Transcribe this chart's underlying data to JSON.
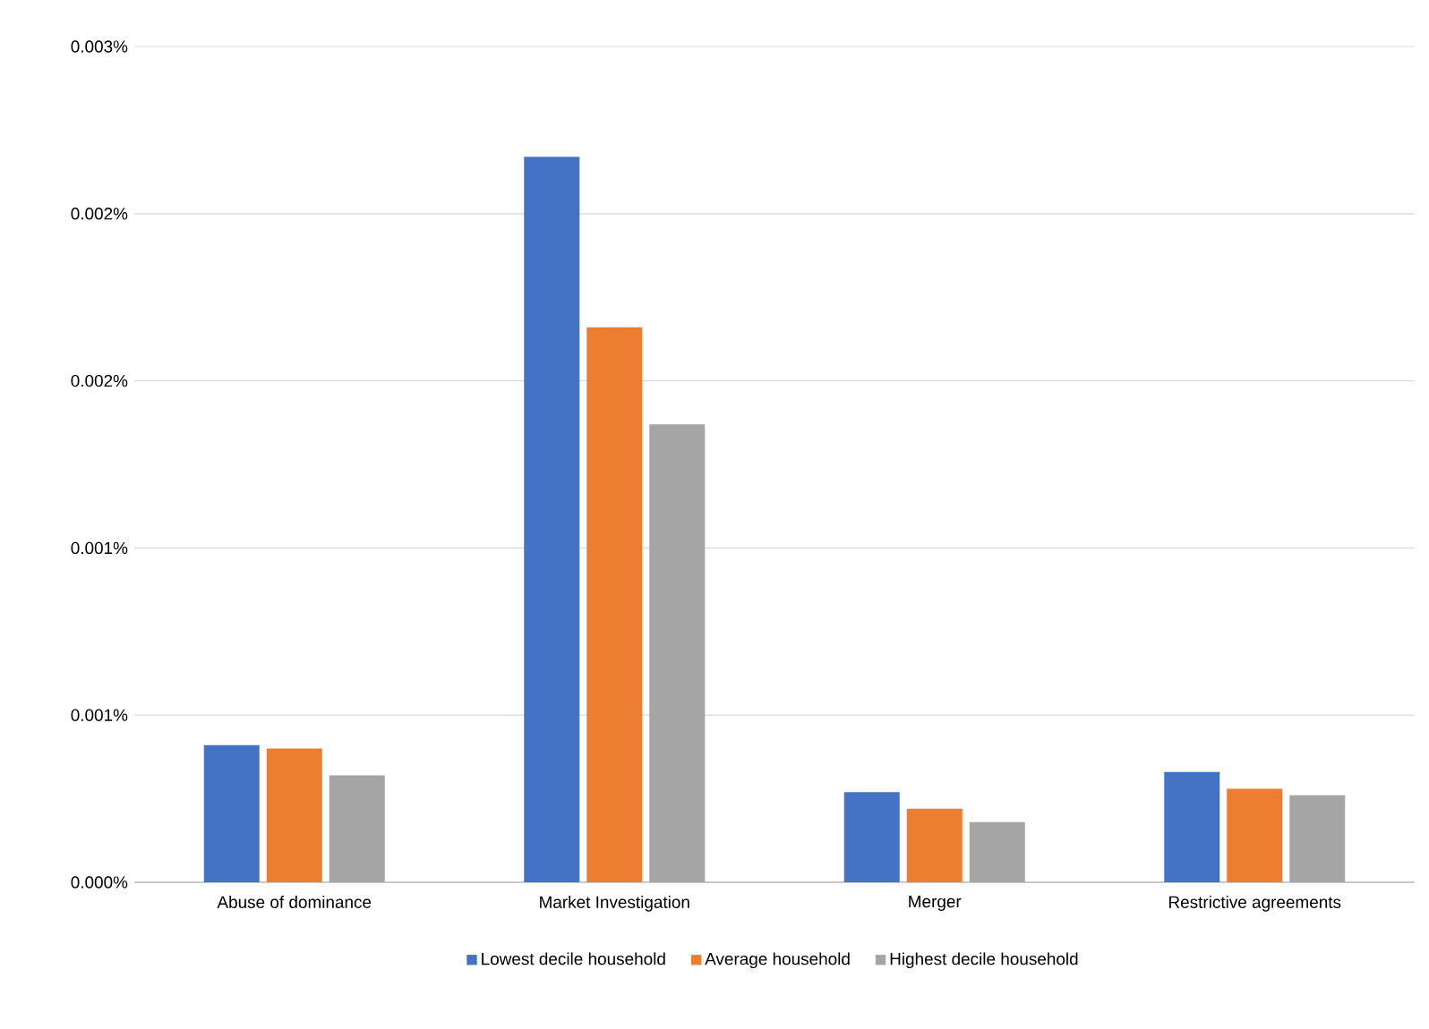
{
  "chart_data": {
    "type": "bar",
    "categories": [
      "Abuse of dominance",
      "Market Investigation",
      "Merger",
      "Restrictive agreements"
    ],
    "series": [
      {
        "name": "Lowest decile household",
        "color": "#4472c4",
        "values": [
          0.00041,
          0.00217,
          0.00027,
          0.00033
        ]
      },
      {
        "name": "Average household",
        "color": "#ed7d31",
        "values": [
          0.0004,
          0.00166,
          0.00022,
          0.00028
        ]
      },
      {
        "name": "Highest decile household",
        "color": "#a5a5a5",
        "values": [
          0.00032,
          0.00137,
          0.00018,
          0.00026
        ]
      }
    ],
    "ylim": [
      0,
      0.0025
    ],
    "yticks": [
      {
        "value": 0,
        "label": "0.000%"
      },
      {
        "value": 0.0005,
        "label": "0.001%"
      },
      {
        "value": 0.001,
        "label": "0.001%"
      },
      {
        "value": 0.0015,
        "label": "0.002%"
      },
      {
        "value": 0.002,
        "label": "0.002%"
      },
      {
        "value": 0.0025,
        "label": "0.003%"
      }
    ],
    "grid": "y",
    "legend": "bottom"
  }
}
